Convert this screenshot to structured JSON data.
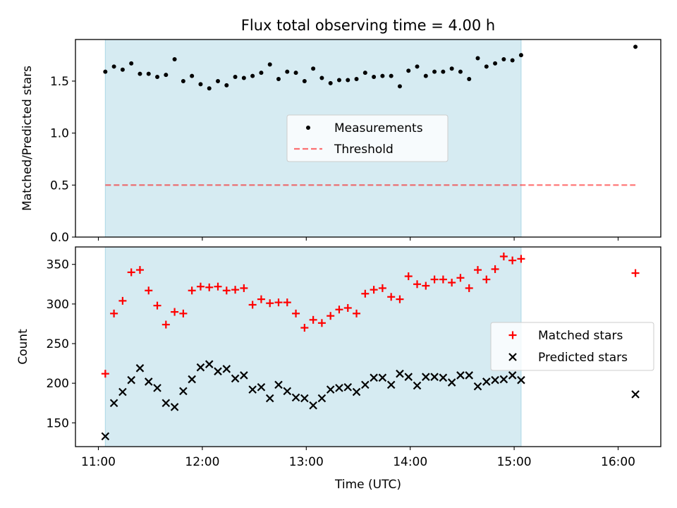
{
  "title": "Flux total observing time = 4.00 h",
  "colors": {
    "shade": "#add8e6",
    "measurements": "#000000",
    "threshold": "#ff0000",
    "matched": "#ff0000",
    "predicted": "#000000"
  },
  "chart_data": [
    {
      "type": "scatter",
      "ylabel": "Matched/Predicted stars",
      "ylim": [
        0,
        1.9
      ],
      "yticks": [
        0.0,
        0.5,
        1.0,
        1.5
      ],
      "ytick_labels": [
        "0.0",
        "0.5",
        "1.0",
        "1.5"
      ],
      "shaded_span": [
        "11:04",
        "15:04"
      ],
      "legend": {
        "placement": "center",
        "entries": [
          "Measurements",
          "Threshold"
        ]
      },
      "threshold": {
        "name": "Threshold",
        "value": 0.5,
        "x_range": [
          "11:04",
          "16:10"
        ]
      },
      "series": [
        {
          "name": "Measurements",
          "x": [
            "11:04",
            "11:09",
            "11:14",
            "11:19",
            "11:24",
            "11:29",
            "11:34",
            "11:39",
            "11:44",
            "11:49",
            "11:54",
            "11:59",
            "12:04",
            "12:09",
            "12:14",
            "12:19",
            "12:24",
            "12:29",
            "12:34",
            "12:39",
            "12:44",
            "12:49",
            "12:54",
            "12:59",
            "13:04",
            "13:09",
            "13:14",
            "13:19",
            "13:24",
            "13:29",
            "13:34",
            "13:39",
            "13:44",
            "13:49",
            "13:54",
            "13:59",
            "14:04",
            "14:09",
            "14:14",
            "14:19",
            "14:24",
            "14:29",
            "14:34",
            "14:39",
            "14:44",
            "14:49",
            "14:54",
            "14:59",
            "15:04",
            "16:10"
          ],
          "y": [
            1.59,
            1.64,
            1.61,
            1.67,
            1.57,
            1.57,
            1.54,
            1.56,
            1.71,
            1.5,
            1.55,
            1.47,
            1.43,
            1.5,
            1.46,
            1.54,
            1.53,
            1.55,
            1.58,
            1.66,
            1.52,
            1.59,
            1.58,
            1.5,
            1.62,
            1.53,
            1.48,
            1.51,
            1.51,
            1.52,
            1.58,
            1.54,
            1.55,
            1.55,
            1.45,
            1.6,
            1.64,
            1.55,
            1.59,
            1.59,
            1.62,
            1.59,
            1.52,
            1.72,
            1.64,
            1.67,
            1.71,
            1.7,
            1.75,
            1.83
          ]
        }
      ]
    },
    {
      "type": "scatter",
      "xlabel": "Time (UTC)",
      "ylabel": "Count",
      "ylim": [
        120,
        372
      ],
      "yticks": [
        150,
        200,
        250,
        300,
        350
      ],
      "ytick_labels": [
        "150",
        "200",
        "250",
        "300",
        "350"
      ],
      "xticks": [
        "11:00",
        "12:00",
        "13:00",
        "14:00",
        "15:00",
        "16:00"
      ],
      "shaded_span": [
        "11:04",
        "15:04"
      ],
      "legend": {
        "placement": "center-right",
        "entries": [
          "Matched stars",
          "Predicted stars"
        ]
      },
      "series": [
        {
          "name": "Matched stars",
          "marker": "+",
          "x": [
            "11:04",
            "11:09",
            "11:14",
            "11:19",
            "11:24",
            "11:29",
            "11:34",
            "11:39",
            "11:44",
            "11:49",
            "11:54",
            "11:59",
            "12:04",
            "12:09",
            "12:14",
            "12:19",
            "12:24",
            "12:29",
            "12:34",
            "12:39",
            "12:44",
            "12:49",
            "12:54",
            "12:59",
            "13:04",
            "13:09",
            "13:14",
            "13:19",
            "13:24",
            "13:29",
            "13:34",
            "13:39",
            "13:44",
            "13:49",
            "13:54",
            "13:59",
            "14:04",
            "14:09",
            "14:14",
            "14:19",
            "14:24",
            "14:29",
            "14:34",
            "14:39",
            "14:44",
            "14:49",
            "14:54",
            "14:59",
            "15:04",
            "16:10"
          ],
          "y": [
            212,
            288,
            304,
            340,
            343,
            317,
            298,
            274,
            290,
            288,
            317,
            322,
            321,
            322,
            317,
            318,
            320,
            299,
            306,
            301,
            302,
            302,
            288,
            270,
            280,
            276,
            285,
            293,
            295,
            288,
            313,
            318,
            320,
            309,
            306,
            335,
            325,
            323,
            331,
            331,
            327,
            333,
            320,
            343,
            331,
            344,
            360,
            355,
            357,
            339
          ]
        },
        {
          "name": "Predicted stars",
          "marker": "x",
          "x": [
            "11:04",
            "11:09",
            "11:14",
            "11:19",
            "11:24",
            "11:29",
            "11:34",
            "11:39",
            "11:44",
            "11:49",
            "11:54",
            "11:59",
            "12:04",
            "12:09",
            "12:14",
            "12:19",
            "12:24",
            "12:29",
            "12:34",
            "12:39",
            "12:44",
            "12:49",
            "12:54",
            "12:59",
            "13:04",
            "13:09",
            "13:14",
            "13:19",
            "13:24",
            "13:29",
            "13:34",
            "13:39",
            "13:44",
            "13:49",
            "13:54",
            "13:59",
            "14:04",
            "14:09",
            "14:14",
            "14:19",
            "14:24",
            "14:29",
            "14:34",
            "14:39",
            "14:44",
            "14:49",
            "14:54",
            "14:59",
            "15:04",
            "16:10"
          ],
          "y": [
            133,
            175,
            189,
            204,
            219,
            202,
            194,
            175,
            170,
            190,
            205,
            220,
            224,
            215,
            218,
            206,
            210,
            192,
            195,
            181,
            198,
            190,
            182,
            181,
            172,
            181,
            192,
            194,
            195,
            189,
            198,
            207,
            207,
            198,
            212,
            208,
            197,
            208,
            208,
            207,
            201,
            210,
            210,
            196,
            202,
            204,
            205,
            210,
            204,
            186
          ]
        }
      ]
    }
  ]
}
